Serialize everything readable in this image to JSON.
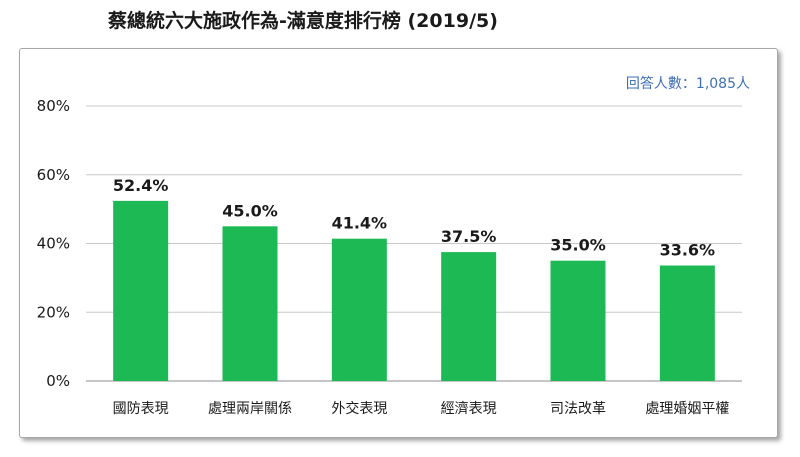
{
  "chart_data": {
    "type": "bar",
    "title": "蔡總統六大施政作為-滿意度排行榜 (2019/5)",
    "annotation": "回答人數：1,085人",
    "xlabel": "",
    "ylabel": "",
    "ylim": [
      0,
      80
    ],
    "yticks": [
      "0%",
      "20%",
      "40%",
      "60%",
      "80%"
    ],
    "ytick_values": [
      0,
      20,
      40,
      60,
      80
    ],
    "grid": true,
    "bar_color": "#1db954",
    "categories": [
      "國防表現",
      "處理兩岸關係",
      "外交表現",
      "經濟表現",
      "司法改革",
      "處理婚姻平權"
    ],
    "values": [
      52.4,
      45.0,
      41.4,
      37.5,
      35.0,
      33.6
    ],
    "value_labels": [
      "52.4%",
      "45.0%",
      "41.4%",
      "37.5%",
      "35.0%",
      "33.6%"
    ]
  }
}
